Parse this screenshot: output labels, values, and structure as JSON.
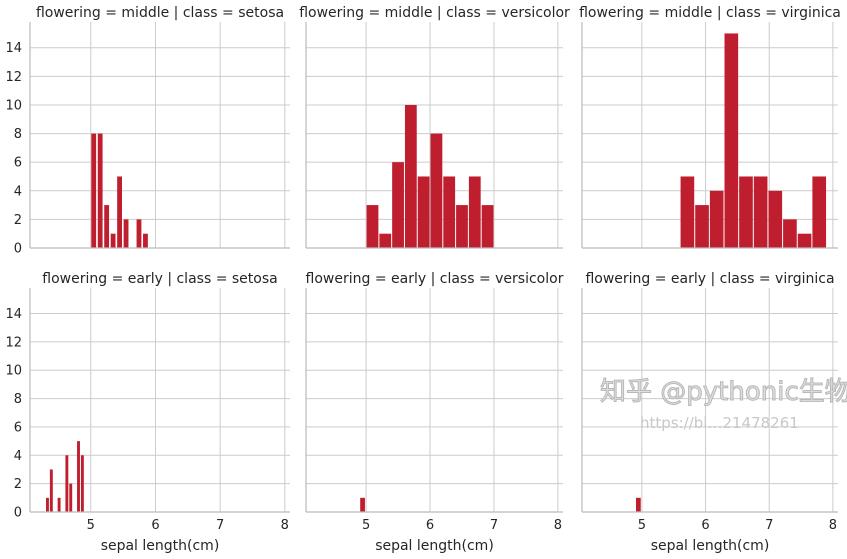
{
  "chart_data": {
    "type": "bar",
    "layout": "facet-grid 2 rows x 3 columns, shared axes",
    "grid": true,
    "bar_color": "#be1e2d",
    "xlim": [
      4.06,
      8.08
    ],
    "ylim": [
      0,
      15.8
    ],
    "x_ticks": [
      5,
      6,
      7,
      8
    ],
    "y_ticks": [
      0,
      2,
      4,
      6,
      8,
      10,
      12,
      14
    ],
    "xlabel": "sepal length(cm)",
    "panels": [
      {
        "title": "flowering = middle | class = setosa",
        "bins": [
          {
            "x0": 5.0,
            "x1": 5.09,
            "count": 8
          },
          {
            "x0": 5.1,
            "x1": 5.19,
            "count": 8
          },
          {
            "x0": 5.2,
            "x1": 5.29,
            "count": 3
          },
          {
            "x0": 5.3,
            "x1": 5.39,
            "count": 1
          },
          {
            "x0": 5.4,
            "x1": 5.49,
            "count": 5
          },
          {
            "x0": 5.5,
            "x1": 5.59,
            "count": 2
          },
          {
            "x0": 5.7,
            "x1": 5.79,
            "count": 2
          },
          {
            "x0": 5.8,
            "x1": 5.89,
            "count": 1
          }
        ]
      },
      {
        "title": "flowering = middle | class = versicolor",
        "bins": [
          {
            "x0": 5.0,
            "x1": 5.2,
            "count": 3
          },
          {
            "x0": 5.2,
            "x1": 5.4,
            "count": 1
          },
          {
            "x0": 5.4,
            "x1": 5.6,
            "count": 6
          },
          {
            "x0": 5.6,
            "x1": 5.8,
            "count": 10
          },
          {
            "x0": 5.8,
            "x1": 6.0,
            "count": 5
          },
          {
            "x0": 6.0,
            "x1": 6.2,
            "count": 8
          },
          {
            "x0": 6.2,
            "x1": 6.4,
            "count": 5
          },
          {
            "x0": 6.4,
            "x1": 6.6,
            "count": 3
          },
          {
            "x0": 6.6,
            "x1": 6.8,
            "count": 5
          },
          {
            "x0": 6.8,
            "x1": 7.0,
            "count": 3
          }
        ]
      },
      {
        "title": "flowering = middle | class = virginica",
        "bins": [
          {
            "x0": 5.6,
            "x1": 5.83,
            "count": 5
          },
          {
            "x0": 5.83,
            "x1": 6.06,
            "count": 3
          },
          {
            "x0": 6.06,
            "x1": 6.29,
            "count": 4
          },
          {
            "x0": 6.29,
            "x1": 6.52,
            "count": 15
          },
          {
            "x0": 6.52,
            "x1": 6.75,
            "count": 5
          },
          {
            "x0": 6.75,
            "x1": 6.98,
            "count": 5
          },
          {
            "x0": 6.98,
            "x1": 7.21,
            "count": 4
          },
          {
            "x0": 7.21,
            "x1": 7.44,
            "count": 2
          },
          {
            "x0": 7.44,
            "x1": 7.67,
            "count": 1
          },
          {
            "x0": 7.67,
            "x1": 7.9,
            "count": 5
          }
        ]
      },
      {
        "title": "flowering = early | class = setosa",
        "bins": [
          {
            "x0": 4.3,
            "x1": 4.36,
            "count": 1
          },
          {
            "x0": 4.36,
            "x1": 4.42,
            "count": 3
          },
          {
            "x0": 4.48,
            "x1": 4.54,
            "count": 1
          },
          {
            "x0": 4.6,
            "x1": 4.66,
            "count": 4
          },
          {
            "x0": 4.66,
            "x1": 4.72,
            "count": 2
          },
          {
            "x0": 4.78,
            "x1": 4.84,
            "count": 5
          },
          {
            "x0": 4.84,
            "x1": 4.9,
            "count": 4
          }
        ]
      },
      {
        "title": "flowering = early | class = versicolor",
        "bins": [
          {
            "x0": 4.9,
            "x1": 4.99,
            "count": 1
          }
        ]
      },
      {
        "title": "flowering = early | class = virginica",
        "bins": [
          {
            "x0": 4.9,
            "x1": 4.99,
            "count": 1
          }
        ]
      }
    ]
  },
  "watermark": {
    "line1": "知乎 @pythonic生物人",
    "line2": "https://bl…21478261"
  }
}
